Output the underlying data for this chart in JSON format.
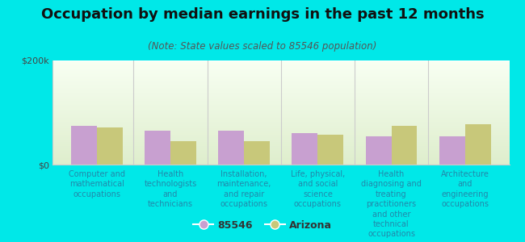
{
  "title": "Occupation by median earnings in the past 12 months",
  "subtitle": "(Note: State values scaled to 85546 population)",
  "categories": [
    "Computer and\nmathematical\noccupations",
    "Health\ntechnologists\nand\ntechnicians",
    "Installation,\nmaintenance,\nand repair\noccupations",
    "Life, physical,\nand social\nscience\noccupations",
    "Health\ndiagnosing and\ntreating\npractitioners\nand other\ntechnical\noccupations",
    "Architecture\nand\nengineering\noccupations"
  ],
  "values_85546": [
    75000,
    65000,
    65000,
    60000,
    55000,
    55000
  ],
  "values_arizona": [
    72000,
    45000,
    45000,
    58000,
    75000,
    78000
  ],
  "color_85546": "#c8a0d0",
  "color_arizona": "#c8c87a",
  "ylim": [
    0,
    200000
  ],
  "ytick_labels": [
    "$0",
    "$200k"
  ],
  "background_color": "#00e8e8",
  "bar_width": 0.35,
  "legend_label_1": "85546",
  "legend_label_2": "Arizona",
  "title_fontsize": 13,
  "subtitle_fontsize": 8.5,
  "tick_label_fontsize": 7,
  "ytick_fontsize": 8,
  "label_color": "#2288aa"
}
